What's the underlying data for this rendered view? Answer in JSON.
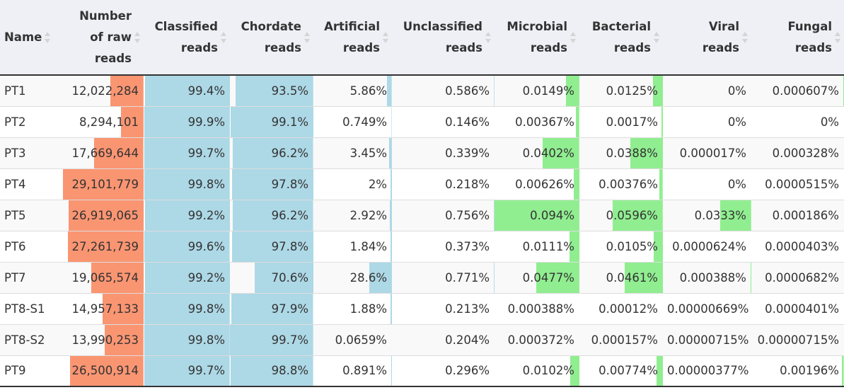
{
  "colors": {
    "raw_reads": "#fa9572",
    "classified": "#add8e6",
    "microbial": "#90ee90"
  },
  "columns": [
    {
      "key": "name",
      "lines": [
        "Name"
      ],
      "align": "left",
      "bar": null
    },
    {
      "key": "raw_reads",
      "lines": [
        "Number",
        "of raw",
        "reads"
      ],
      "align": "right",
      "bar": "raw_reads"
    },
    {
      "key": "classified",
      "lines": [
        "Classified",
        "reads"
      ],
      "align": "right",
      "bar": "classified"
    },
    {
      "key": "chordate",
      "lines": [
        "Chordate",
        "reads"
      ],
      "align": "right",
      "bar": "classified"
    },
    {
      "key": "artificial",
      "lines": [
        "Artificial",
        "reads"
      ],
      "align": "right",
      "bar": "classified"
    },
    {
      "key": "unclassified",
      "lines": [
        "Unclassified",
        "reads"
      ],
      "align": "right",
      "bar": "classified"
    },
    {
      "key": "microbial",
      "lines": [
        "Microbial",
        "reads"
      ],
      "align": "right",
      "bar": "microbial"
    },
    {
      "key": "bacterial",
      "lines": [
        "Bacterial",
        "reads"
      ],
      "align": "right",
      "bar": "microbial"
    },
    {
      "key": "viral",
      "lines": [
        "Viral",
        "reads"
      ],
      "align": "right",
      "bar": "microbial"
    },
    {
      "key": "fungal",
      "lines": [
        "Fungal",
        "reads"
      ],
      "align": "right",
      "bar": "microbial"
    }
  ],
  "rows": [
    {
      "name": "PT1",
      "raw_reads": "12,022,284",
      "classified": "99.4%",
      "chordate": "93.5%",
      "artificial": "5.86%",
      "unclassified": "0.586%",
      "microbial": "0.0149%",
      "bacterial": "0.0125%",
      "viral": "0%",
      "fungal": "0.000607%",
      "bars": {
        "raw_reads": 0.41,
        "classified": 0.986,
        "chordate": 0.93,
        "artificial": 0.06,
        "unclassified": 0.005,
        "microbial": 0.16,
        "bacterial": 0.12,
        "viral": 0,
        "fungal": 0.01
      }
    },
    {
      "name": "PT2",
      "raw_reads": "8,294,101",
      "classified": "99.9%",
      "chordate": "99.1%",
      "artificial": "0.749%",
      "unclassified": "0.146%",
      "microbial": "0.00367%",
      "bacterial": "0.0017%",
      "viral": "0%",
      "fungal": "0%",
      "bars": {
        "raw_reads": 0.28,
        "classified": 0.991,
        "chordate": 0.991,
        "artificial": 0.005,
        "unclassified": 0.002,
        "microbial": 0.04,
        "bacterial": 0.02,
        "viral": 0,
        "fungal": 0
      }
    },
    {
      "name": "PT3",
      "raw_reads": "17,669,644",
      "classified": "99.7%",
      "chordate": "96.2%",
      "artificial": "3.45%",
      "unclassified": "0.339%",
      "microbial": "0.0402%",
      "bacterial": "0.0388%",
      "viral": "0.000017%",
      "fungal": "0.000328%",
      "bars": {
        "raw_reads": 0.61,
        "classified": 0.989,
        "chordate": 0.962,
        "artificial": 0.035,
        "unclassified": 0.003,
        "microbial": 0.43,
        "bacterial": 0.39,
        "viral": 0,
        "fungal": 0
      }
    },
    {
      "name": "PT4",
      "raw_reads": "29,101,779",
      "classified": "99.8%",
      "chordate": "97.8%",
      "artificial": "2%",
      "unclassified": "0.218%",
      "microbial": "0.00626%",
      "bacterial": "0.00376%",
      "viral": "0%",
      "fungal": "0.0000515%",
      "bars": {
        "raw_reads": 1.0,
        "classified": 0.99,
        "chordate": 0.978,
        "artificial": 0.02,
        "unclassified": 0.002,
        "microbial": 0.07,
        "bacterial": 0.04,
        "viral": 0,
        "fungal": 0
      }
    },
    {
      "name": "PT5",
      "raw_reads": "26,919,065",
      "classified": "99.2%",
      "chordate": "96.2%",
      "artificial": "2.92%",
      "unclassified": "0.756%",
      "microbial": "0.094%",
      "bacterial": "0.0596%",
      "viral": "0.0333%",
      "fungal": "0.000186%",
      "bars": {
        "raw_reads": 0.93,
        "classified": 0.984,
        "chordate": 0.962,
        "artificial": 0.03,
        "unclassified": 0.006,
        "microbial": 1.0,
        "bacterial": 0.6,
        "viral": 0.35,
        "fungal": 0
      }
    },
    {
      "name": "PT6",
      "raw_reads": "27,261,739",
      "classified": "99.6%",
      "chordate": "97.8%",
      "artificial": "1.84%",
      "unclassified": "0.373%",
      "microbial": "0.0111%",
      "bacterial": "0.0105%",
      "viral": "0.0000624%",
      "fungal": "0.0000403%",
      "bars": {
        "raw_reads": 0.94,
        "classified": 0.988,
        "chordate": 0.978,
        "artificial": 0.018,
        "unclassified": 0.003,
        "microbial": 0.12,
        "bacterial": 0.11,
        "viral": 0,
        "fungal": 0
      }
    },
    {
      "name": "PT7",
      "raw_reads": "19,065,574",
      "classified": "99.2%",
      "chordate": "70.6%",
      "artificial": "28.6%",
      "unclassified": "0.771%",
      "microbial": "0.0477%",
      "bacterial": "0.0461%",
      "viral": "0.000388%",
      "fungal": "0.0000682%",
      "bars": {
        "raw_reads": 0.65,
        "classified": 0.984,
        "chordate": 0.706,
        "artificial": 0.29,
        "unclassified": 0.006,
        "microbial": 0.51,
        "bacterial": 0.46,
        "viral": 0.01,
        "fungal": 0
      }
    },
    {
      "name": "PT8-S1",
      "raw_reads": "14,957,133",
      "classified": "99.8%",
      "chordate": "97.9%",
      "artificial": "1.88%",
      "unclassified": "0.213%",
      "microbial": "0.000388%",
      "bacterial": "0.00012%",
      "viral": "0.00000669%",
      "fungal": "0.0000401%",
      "bars": {
        "raw_reads": 0.51,
        "classified": 0.99,
        "chordate": 0.979,
        "artificial": 0.018,
        "unclassified": 0.002,
        "microbial": 0.004,
        "bacterial": 0.001,
        "viral": 0,
        "fungal": 0
      }
    },
    {
      "name": "PT8-S2",
      "raw_reads": "13,990,253",
      "classified": "99.8%",
      "chordate": "99.7%",
      "artificial": "0.0659%",
      "unclassified": "0.204%",
      "microbial": "0.000372%",
      "bacterial": "0.000157%",
      "viral": "0.00000715%",
      "fungal": "0.00000715%",
      "bars": {
        "raw_reads": 0.48,
        "classified": 0.99,
        "chordate": 0.997,
        "artificial": 0.001,
        "unclassified": 0.002,
        "microbial": 0.004,
        "bacterial": 0.002,
        "viral": 0,
        "fungal": 0
      }
    },
    {
      "name": "PT9",
      "raw_reads": "26,500,914",
      "classified": "99.7%",
      "chordate": "98.8%",
      "artificial": "0.891%",
      "unclassified": "0.296%",
      "microbial": "0.0102%",
      "bacterial": "0.00774%",
      "viral": "0.00000377%",
      "fungal": "0.00196%",
      "bars": {
        "raw_reads": 0.91,
        "classified": 0.989,
        "chordate": 0.988,
        "artificial": 0.009,
        "unclassified": 0.002,
        "microbial": 0.11,
        "bacterial": 0.08,
        "viral": 0,
        "fungal": 0.02
      }
    }
  ]
}
